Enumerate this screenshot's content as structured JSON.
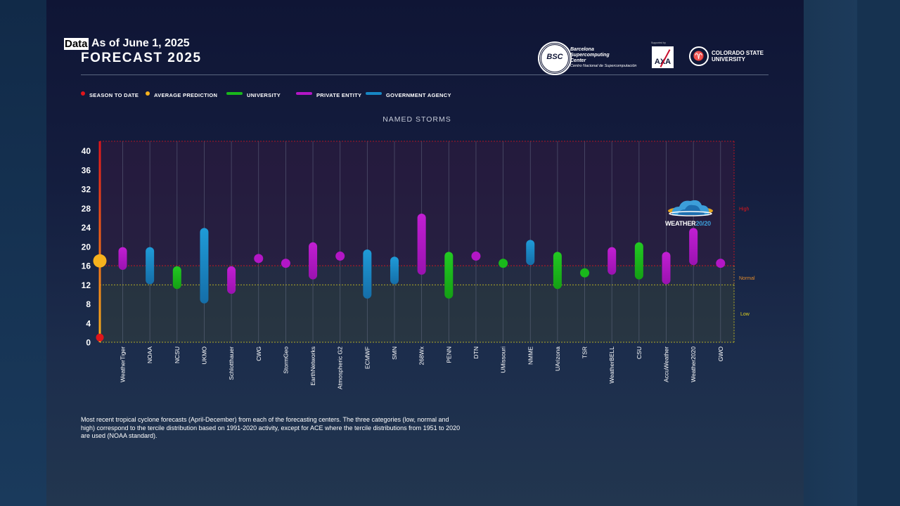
{
  "header": {
    "data_tag": "Data",
    "as_of": "As of June 1, 2025",
    "title": "FORECAST 2025"
  },
  "logos": {
    "bsc": {
      "badge": "BSC",
      "line1": "Barcelona",
      "line2": "Supercomputing",
      "line3": "Center",
      "line4": "Centro Nacional de Supercomputación"
    },
    "axa": {
      "small": "Supported by",
      "mark": "AXA"
    },
    "csu": {
      "line1": "COLORADO STATE",
      "line2": "UNIVERSITY"
    },
    "weather2020": {
      "part1": "WEATHER",
      "part2": "20/20"
    }
  },
  "legend": [
    {
      "label": "SEASON TO DATE",
      "kind": "dot",
      "color": "#e0151b"
    },
    {
      "label": "AVERAGE PREDICTION",
      "kind": "dot",
      "color": "#f7b21d"
    },
    {
      "label": "UNIVERSITY",
      "kind": "line",
      "color": "#19b81b"
    },
    {
      "label": "PRIVATE ENTITY",
      "kind": "line",
      "color": "#b316c6"
    },
    {
      "label": "GOVERNMENT AGENCY",
      "kind": "line",
      "color": "#1787c4"
    }
  ],
  "caption": "Most recent tropical cyclone forecasts (April-December) from each of the forecasting centers. The three categories (low, normal and high) correspond to the tercile distribution based on 1991-2020 activity, except for ACE where the tercile distributions from 1951 to 2020 are used (NOAA standard).",
  "colors": {
    "university": "#19b81b",
    "private": "#b316c6",
    "government": "#1787c4",
    "season": "#e0151b",
    "average": "#f7b21d",
    "high": "#e0151b",
    "normal": "#e08a2b",
    "low": "#e0d21f"
  },
  "chart_data": {
    "type": "range",
    "title": "NAMED STORMS",
    "ylim": [
      0,
      42
    ],
    "yticks": [
      0,
      4,
      8,
      12,
      16,
      20,
      24,
      28,
      32,
      36,
      40
    ],
    "tercile_bounds": {
      "low_max": 12,
      "normal_max": 16,
      "high_max": 42
    },
    "tercile_labels": {
      "high": "High",
      "normal": "Normal",
      "low": "Low"
    },
    "season_to_date": 1,
    "average_prediction": 17,
    "forecasts": [
      {
        "name": "WeatherTiger",
        "type": "private",
        "low": 16,
        "high": 19
      },
      {
        "name": "NOAA",
        "type": "government",
        "low": 13,
        "high": 19
      },
      {
        "name": "NCSU",
        "type": "university",
        "low": 12,
        "high": 15
      },
      {
        "name": "UKMO",
        "type": "government",
        "low": 9,
        "high": 23
      },
      {
        "name": "Schlotthauer",
        "type": "private",
        "low": 11,
        "high": 15
      },
      {
        "name": "CWG",
        "type": "private",
        "low": 17.5,
        "high": 17.5
      },
      {
        "name": "StormGeo",
        "type": "private",
        "low": 16.5,
        "high": 16.5
      },
      {
        "name": "EarthNetworks",
        "type": "private",
        "low": 14,
        "high": 20
      },
      {
        "name": "Atmospheric G2",
        "type": "private",
        "low": 18,
        "high": 18
      },
      {
        "name": "ECMWF",
        "type": "government",
        "low": 10,
        "high": 18.5
      },
      {
        "name": "SMN",
        "type": "government",
        "low": 13,
        "high": 17
      },
      {
        "name": "268Wx",
        "type": "private",
        "low": 15,
        "high": 26
      },
      {
        "name": "PENN",
        "type": "university",
        "low": 10,
        "high": 18
      },
      {
        "name": "DTN",
        "type": "private",
        "low": 18,
        "high": 18
      },
      {
        "name": "UMissouri",
        "type": "university",
        "low": 16.5,
        "high": 16.5
      },
      {
        "name": "NMME",
        "type": "government",
        "low": 17,
        "high": 20.5
      },
      {
        "name": "UArizona",
        "type": "university",
        "low": 12,
        "high": 18
      },
      {
        "name": "TSR",
        "type": "university",
        "low": 14.5,
        "high": 14.5
      },
      {
        "name": "WeatherBELL",
        "type": "private",
        "low": 15,
        "high": 19
      },
      {
        "name": "CSU",
        "type": "university",
        "low": 14,
        "high": 20
      },
      {
        "name": "AccuWeather",
        "type": "private",
        "low": 13,
        "high": 18
      },
      {
        "name": "Weather2020",
        "type": "private",
        "low": 17,
        "high": 23
      },
      {
        "name": "GWO",
        "type": "private",
        "low": 16.5,
        "high": 16.5
      }
    ]
  }
}
